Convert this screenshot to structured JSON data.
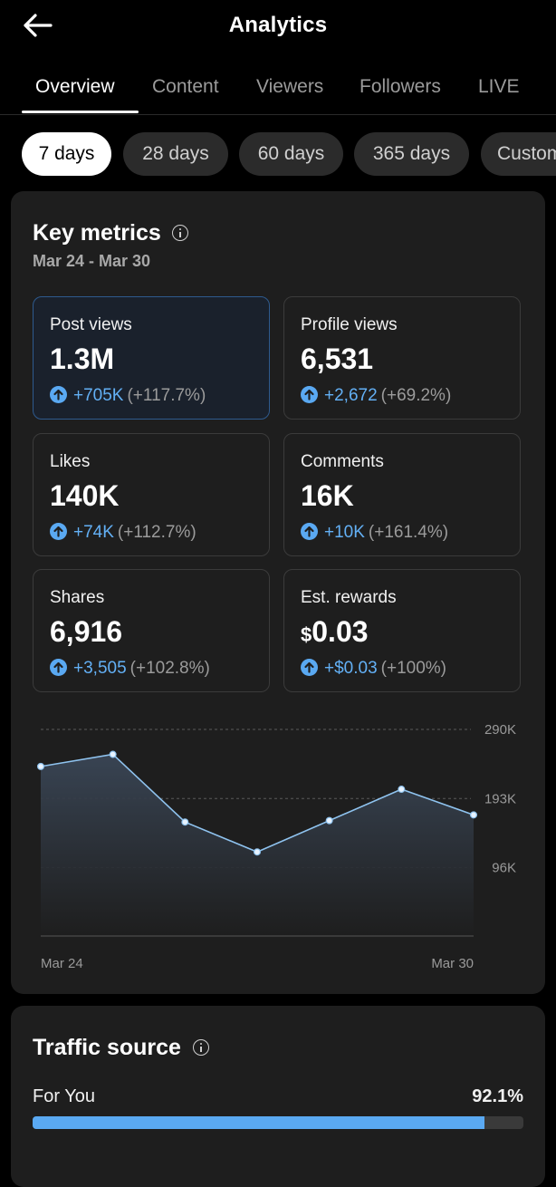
{
  "header": {
    "title": "Analytics"
  },
  "tabs": [
    {
      "label": "Overview",
      "active": true
    },
    {
      "label": "Content"
    },
    {
      "label": "Viewers"
    },
    {
      "label": "Followers"
    },
    {
      "label": "LIVE"
    }
  ],
  "ranges": [
    {
      "label": "7 days",
      "active": true
    },
    {
      "label": "28 days"
    },
    {
      "label": "60 days"
    },
    {
      "label": "365 days"
    },
    {
      "label": "Custom"
    }
  ],
  "key_metrics": {
    "title": "Key metrics",
    "date_range": "Mar 24 - Mar 30",
    "items": [
      {
        "label": "Post views",
        "value": "1.3M",
        "delta": "+705K",
        "pct": "(+117.7%)",
        "selected": true
      },
      {
        "label": "Profile views",
        "value": "6,531",
        "delta": "+2,672",
        "pct": "(+69.2%)"
      },
      {
        "label": "Likes",
        "value": "140K",
        "delta": "+74K",
        "pct": "(+112.7%)"
      },
      {
        "label": "Comments",
        "value": "16K",
        "delta": "+10K",
        "pct": "(+161.4%)"
      },
      {
        "label": "Shares",
        "value": "6,916",
        "delta": "+3,505",
        "pct": "(+102.8%)"
      },
      {
        "label": "Est. rewards",
        "currency": "$",
        "value": "0.03",
        "delta": "+$0.03",
        "pct": "(+100%)"
      }
    ]
  },
  "chart_data": {
    "type": "area",
    "x": [
      "Mar 24",
      "Mar 25",
      "Mar 26",
      "Mar 27",
      "Mar 28",
      "Mar 29",
      "Mar 30"
    ],
    "series": [
      {
        "values": [
          238000,
          255000,
          160000,
          118000,
          162000,
          206000,
          170000
        ]
      }
    ],
    "xlabel": "",
    "ylabel": "",
    "x_tick_labels": [
      "Mar 24",
      "Mar 30"
    ],
    "y_ticks": [
      96000,
      193000,
      290000
    ],
    "y_tick_labels": [
      "96K",
      "193K",
      "290K"
    ],
    "ylim": [
      0,
      290000
    ],
    "grid": true,
    "colors": {
      "line": "#8fc3ef",
      "fill_top": "#3a4656"
    }
  },
  "traffic_source": {
    "title": "Traffic source",
    "items": [
      {
        "label": "For You",
        "value": "92.1%",
        "fraction": 0.921
      }
    ]
  },
  "colors": {
    "accent": "#5aa9f2",
    "card": "#1e1e1e",
    "selected_border": "#2e5a8e"
  }
}
